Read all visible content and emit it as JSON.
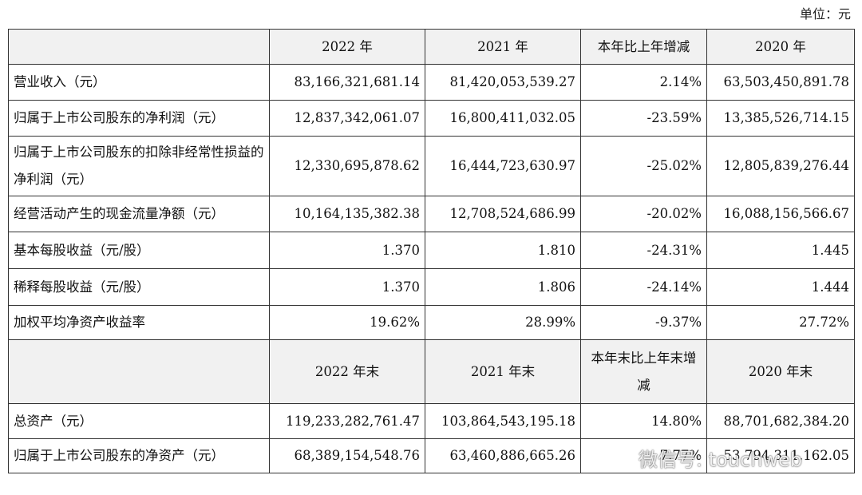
{
  "unit": "单位：元",
  "table": {
    "header1": [
      "",
      "2022 年",
      "2021 年",
      "本年比上年增减",
      "2020 年"
    ],
    "rows": [
      [
        "营业收入（元）",
        "83,166,321,681.14",
        "81,420,053,539.27",
        "2.14%",
        "63,503,450,891.78"
      ],
      [
        "归属于上市公司股东的净利润（元）",
        "12,837,342,061.07",
        "16,800,411,032.05",
        "-23.59%",
        "13,385,526,714.15"
      ],
      [
        "归属于上市公司股东的扣除非经常性损益的净利润（元）",
        "12,330,695,878.62",
        "16,444,723,630.97",
        "-25.02%",
        "12,805,839,276.44"
      ],
      [
        "经营活动产生的现金流量净额（元）",
        "10,164,135,382.38",
        "12,708,524,686.99",
        "-20.02%",
        "16,088,156,566.67"
      ],
      [
        "基本每股收益（元/股）",
        "1.370",
        "1.810",
        "-24.31%",
        "1.445"
      ],
      [
        "稀释每股收益（元/股）",
        "1.370",
        "1.806",
        "-24.14%",
        "1.444"
      ],
      [
        "加权平均净资产收益率",
        "19.62%",
        "28.99%",
        "-9.37%",
        "27.72%"
      ]
    ],
    "header2": [
      "",
      "2022 年末",
      "2021 年末",
      "本年末比上年末增减",
      "2020 年末"
    ],
    "rows2": [
      [
        "总资产（元）",
        "119,233,282,761.47",
        "103,864,543,195.18",
        "14.80%",
        "88,701,682,384.20"
      ],
      [
        "归属于上市公司股东的净资产（元）",
        "68,389,154,548.76",
        "63,460,886,665.26",
        "7.77%",
        "53,794,311,162.05"
      ]
    ]
  },
  "watermark": "微信号: touchweb"
}
